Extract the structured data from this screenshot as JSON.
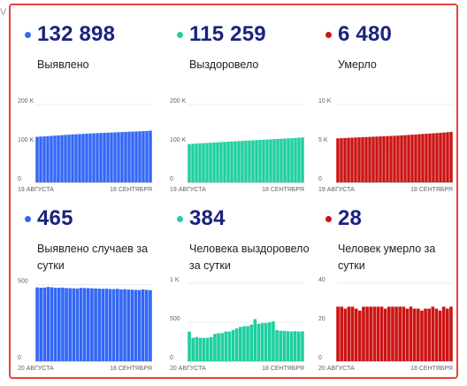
{
  "background_fragment": "V",
  "accent_colors": {
    "border": "#e8453c",
    "title": "#1a237e",
    "blue": "#3367f5",
    "teal": "#1fcf9f",
    "red": "#cc1414"
  },
  "cards": [
    {
      "id": "detected",
      "value": "132 898",
      "label": "Выявлено",
      "dot_color": "#3367f5",
      "chart_data": {
        "type": "bar",
        "color": "#3367f5",
        "x_start": "19 АВГУСТА",
        "x_end": "18 СЕНТЯБРЯ",
        "ytick_labels": [
          "200 K",
          "100 K",
          "0"
        ],
        "yticks": [
          200000,
          100000,
          0
        ],
        "ylim": [
          0,
          200000
        ],
        "values": [
          117000,
          117600,
          118200,
          118800,
          119400,
          120000,
          120600,
          121200,
          121800,
          122400,
          123000,
          123500,
          124000,
          124500,
          125000,
          125500,
          126000,
          126400,
          126800,
          127200,
          127600,
          128000,
          128400,
          128800,
          129200,
          129600,
          130000,
          130400,
          130800,
          131200,
          131600,
          132000,
          132898
        ]
      }
    },
    {
      "id": "recovered",
      "value": "115 259",
      "label": "Выздоровело",
      "dot_color": "#1fcf9f",
      "chart_data": {
        "type": "bar",
        "color": "#1fcf9f",
        "x_start": "19 АВГУСТА",
        "x_end": "18 СЕНТЯБРЯ",
        "ytick_labels": [
          "200 K",
          "100 K",
          "0"
        ],
        "yticks": [
          200000,
          100000,
          0
        ],
        "ylim": [
          0,
          200000
        ],
        "values": [
          98000,
          98600,
          99200,
          99800,
          100400,
          101000,
          101600,
          102200,
          102800,
          103400,
          104000,
          104500,
          105000,
          105500,
          106000,
          106500,
          107000,
          107500,
          108000,
          108500,
          109000,
          109500,
          110000,
          110500,
          111000,
          111500,
          112000,
          112500,
          113000,
          113500,
          114000,
          114600,
          115259
        ]
      }
    },
    {
      "id": "died",
      "value": "6 480",
      "label": "Умерло",
      "dot_color": "#cc1414",
      "chart_data": {
        "type": "bar",
        "color": "#cc1414",
        "x_start": "19 АВГУСТА",
        "x_end": "18 СЕНТЯБРЯ",
        "ytick_labels": [
          "10 K",
          "5 K",
          "0"
        ],
        "yticks": [
          10000,
          5000,
          0
        ],
        "ylim": [
          0,
          10000
        ],
        "values": [
          5650,
          5680,
          5700,
          5720,
          5740,
          5760,
          5780,
          5800,
          5820,
          5840,
          5860,
          5880,
          5900,
          5920,
          5940,
          5960,
          5980,
          6000,
          6030,
          6060,
          6090,
          6120,
          6150,
          6180,
          6210,
          6240,
          6270,
          6300,
          6330,
          6360,
          6400,
          6440,
          6480
        ]
      }
    },
    {
      "id": "detected_daily",
      "value": "465",
      "label": "Выявлено случаев за сутки",
      "dot_color": "#3367f5",
      "chart_data": {
        "type": "bar",
        "color": "#3367f5",
        "x_start": "20 АВГУСТА",
        "x_end": "18 СЕНТЯБРЯ",
        "ytick_labels": [
          "500",
          "0"
        ],
        "yticks": [
          500,
          0
        ],
        "ylim": [
          0,
          510
        ],
        "values": [
          483,
          481,
          482,
          486,
          484,
          480,
          481,
          482,
          479,
          478,
          477,
          476,
          480,
          479,
          478,
          477,
          476,
          475,
          474,
          475,
          473,
          472,
          474,
          470,
          471,
          469,
          468,
          467,
          466,
          470,
          467,
          465
        ]
      }
    },
    {
      "id": "recovered_daily",
      "value": "384",
      "label": "Человека выздоровело за сутки",
      "dot_color": "#1fcf9f",
      "chart_data": {
        "type": "bar",
        "color": "#1fcf9f",
        "x_start": "20 АВГУСТА",
        "x_end": "18 СЕНТЯБРЯ",
        "ytick_labels": [
          "1 K",
          "500",
          "0"
        ],
        "yticks": [
          1000,
          500,
          0
        ],
        "ylim": [
          0,
          1000
        ],
        "values": [
          380,
          300,
          310,
          300,
          300,
          300,
          310,
          350,
          360,
          360,
          380,
          380,
          400,
          420,
          440,
          450,
          450,
          470,
          540,
          480,
          490,
          490,
          500,
          510,
          400,
          390,
          390,
          385,
          380,
          385,
          380,
          384
        ]
      }
    },
    {
      "id": "died_daily",
      "value": "28",
      "label": "Человек умерло за сутки",
      "dot_color": "#cc1414",
      "chart_data": {
        "type": "bar",
        "color": "#cc1414",
        "x_start": "20 АВГУСТА",
        "x_end": "18 СЕНТЯБРЯ",
        "ytick_labels": [
          "40",
          "20",
          "0"
        ],
        "yticks": [
          40,
          20,
          0
        ],
        "ylim": [
          0,
          40
        ],
        "values": [
          28,
          28,
          27,
          28,
          28,
          27,
          26,
          28,
          28,
          28,
          28,
          28,
          28,
          27,
          28,
          28,
          28,
          28,
          28,
          27,
          28,
          27,
          27,
          26,
          27,
          27,
          28,
          27,
          26,
          28,
          27,
          28
        ]
      }
    }
  ]
}
